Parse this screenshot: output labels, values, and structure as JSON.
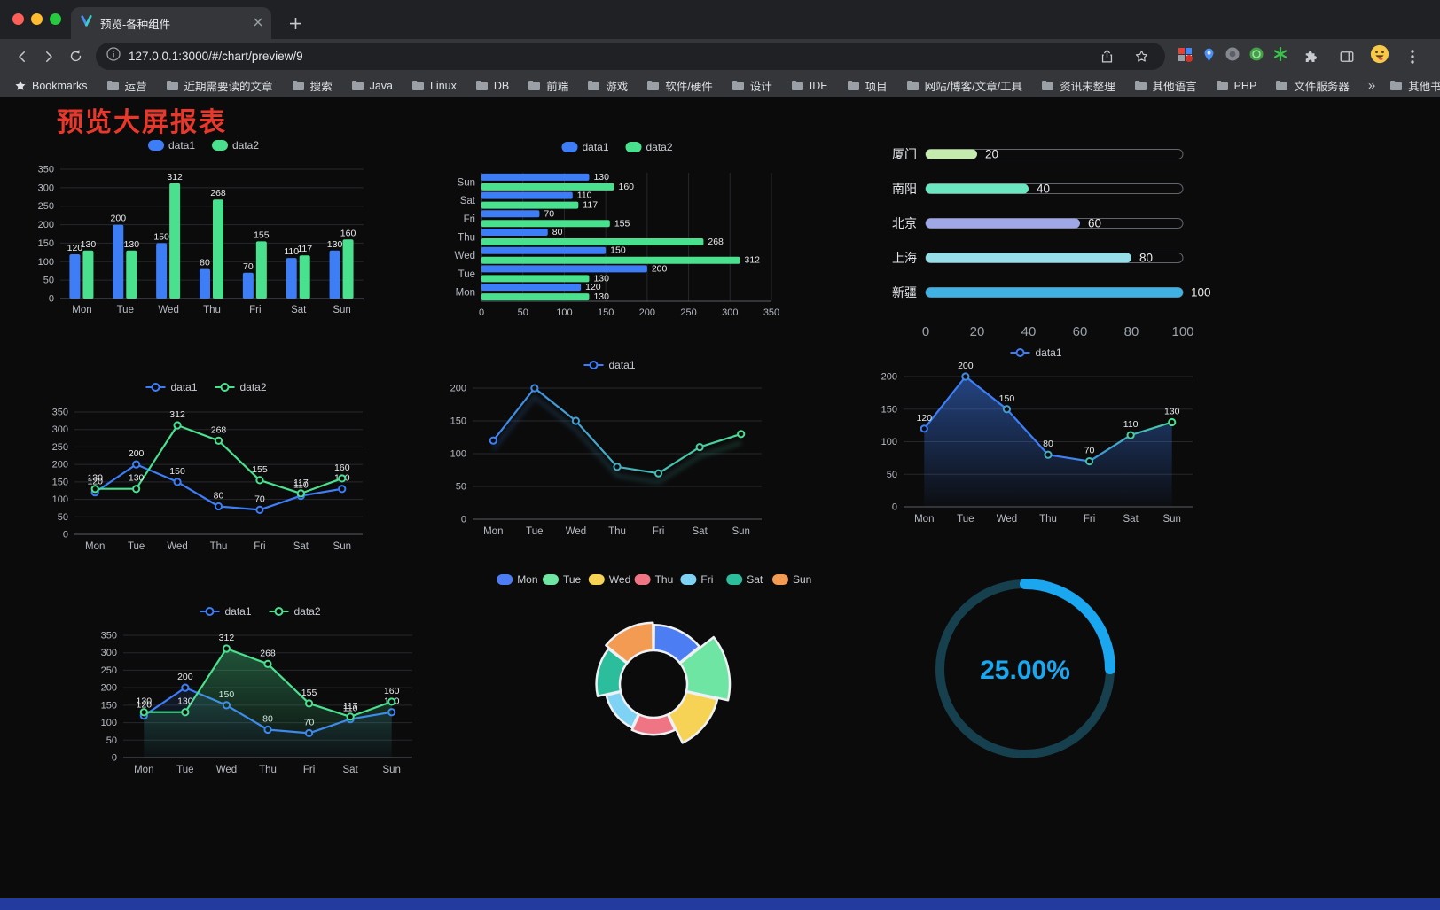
{
  "browser": {
    "tab": {
      "title": "预览-各种组件"
    },
    "url": "127.0.0.1:3000/#/chart/preview/9",
    "bookmarks_label": "Bookmarks",
    "bookmarks": [
      "运营",
      "近期需要读的文章",
      "搜索",
      "Java",
      "Linux",
      "DB",
      "前端",
      "游戏",
      "软件/硬件",
      "设计",
      "IDE",
      "项目",
      "网站/博客/文章/工具",
      "资讯未整理",
      "其他语言",
      "PHP",
      "文件服务器"
    ],
    "overflow_chevron": "»",
    "other_bookmarks": "其他书签"
  },
  "page": {
    "heading": "预览大屏报表",
    "heading_color": "#e8382b",
    "footer_color": "#233b9e",
    "background": "#0b0b0c"
  },
  "chart_data": [
    {
      "id": "bar-vertical",
      "type": "bar",
      "categories": [
        "Mon",
        "Tue",
        "Wed",
        "Thu",
        "Fri",
        "Sat",
        "Sun"
      ],
      "series": [
        {
          "name": "data1",
          "color": "#3D7EF7",
          "values": [
            120,
            200,
            150,
            80,
            70,
            110,
            130
          ]
        },
        {
          "name": "data2",
          "color": "#49E08E",
          "values": [
            130,
            130,
            312,
            268,
            155,
            117,
            160
          ]
        }
      ],
      "ylim": [
        0,
        350
      ],
      "ytick": 50,
      "legend_position": "top",
      "grid": true
    },
    {
      "id": "bar-horizontal",
      "type": "hbar",
      "categories": [
        "Mon",
        "Tue",
        "Wed",
        "Thu",
        "Fri",
        "Sat",
        "Sun"
      ],
      "series": [
        {
          "name": "data1",
          "color": "#3D7EF7",
          "values": [
            120,
            200,
            150,
            80,
            70,
            110,
            130
          ]
        },
        {
          "name": "data2",
          "color": "#49E08E",
          "values": [
            130,
            130,
            312,
            268,
            155,
            117,
            160
          ]
        }
      ],
      "xlim": [
        0,
        350
      ],
      "xtick": 50,
      "legend_position": "top",
      "grid": true
    },
    {
      "id": "capsule",
      "type": "capsule",
      "rows": [
        {
          "label": "厦门",
          "value": 20,
          "color": "#c4ebad"
        },
        {
          "label": "南阳",
          "value": 40,
          "color": "#6be6c1"
        },
        {
          "label": "北京",
          "value": 60,
          "color": "#a0a7e6"
        },
        {
          "label": "上海",
          "value": 80,
          "color": "#96dee8"
        },
        {
          "label": "新疆",
          "value": 100,
          "color": "#3fb1e3"
        }
      ],
      "xlim": [
        0,
        100
      ],
      "xticks": [
        0,
        20,
        40,
        60,
        80,
        100
      ]
    },
    {
      "id": "line-dual",
      "type": "line",
      "categories": [
        "Mon",
        "Tue",
        "Wed",
        "Thu",
        "Fri",
        "Sat",
        "Sun"
      ],
      "series": [
        {
          "name": "data1",
          "color": "#3D7EF7",
          "values": [
            120,
            200,
            150,
            80,
            70,
            110,
            130
          ],
          "labels": true
        },
        {
          "name": "data2",
          "color": "#49E08E",
          "values": [
            130,
            130,
            312,
            268,
            155,
            117,
            160
          ],
          "labels": true
        }
      ],
      "ylim": [
        0,
        350
      ],
      "ytick": 50,
      "legend_position": "top",
      "grid": true
    },
    {
      "id": "line-gradient",
      "type": "line",
      "categories": [
        "Mon",
        "Tue",
        "Wed",
        "Thu",
        "Fri",
        "Sat",
        "Sun"
      ],
      "series": [
        {
          "name": "data1",
          "gradient": [
            "#3D7EF7",
            "#49E08E"
          ],
          "values": [
            120,
            200,
            150,
            80,
            70,
            110,
            130
          ],
          "labels": false,
          "shadow": true
        }
      ],
      "ylim": [
        0,
        200
      ],
      "ytick": 50,
      "legend_position": "top",
      "grid": true
    },
    {
      "id": "line-area-grad",
      "type": "line",
      "categories": [
        "Mon",
        "Tue",
        "Wed",
        "Thu",
        "Fri",
        "Sat",
        "Sun"
      ],
      "series": [
        {
          "name": "data1",
          "gradient": [
            "#3D7EF7",
            "#3D7EF7",
            "#49E08E"
          ],
          "values": [
            120,
            200,
            150,
            80,
            70,
            110,
            130
          ],
          "labels": true,
          "area": true,
          "area_color": "#3D7EF7",
          "area_opacity": 0.5
        }
      ],
      "ylim": [
        0,
        200
      ],
      "ytick": 50,
      "legend_position": "top",
      "grid": true
    },
    {
      "id": "line-dual-area",
      "type": "line",
      "categories": [
        "Mon",
        "Tue",
        "Wed",
        "Thu",
        "Fri",
        "Sat",
        "Sun"
      ],
      "series": [
        {
          "name": "data1",
          "color": "#3D7EF7",
          "values": [
            120,
            200,
            150,
            80,
            70,
            110,
            130
          ],
          "labels": true,
          "area": true,
          "area_color": "#3D7EF7",
          "area_opacity": 0.22
        },
        {
          "name": "data2",
          "color": "#49E08E",
          "values": [
            130,
            130,
            312,
            268,
            155,
            117,
            160
          ],
          "labels": true,
          "area": true,
          "area_color": "#49E08E",
          "area_opacity": 0.38
        }
      ],
      "ylim": [
        0,
        350
      ],
      "ytick": 50,
      "legend_position": "top",
      "grid": true
    },
    {
      "id": "rose",
      "type": "rose",
      "categories": [
        "Mon",
        "Tue",
        "Wed",
        "Thu",
        "Fri",
        "Sat",
        "Sun"
      ],
      "values": [
        120,
        200,
        150,
        80,
        70,
        110,
        130
      ],
      "colors": [
        "#4C7DF3",
        "#6FE5A3",
        "#F6D355",
        "#EF7585",
        "#7ED3F4",
        "#2BBD9C",
        "#F39B53"
      ],
      "inner_radius": 38,
      "legend_position": "top"
    },
    {
      "id": "gauge",
      "type": "gauge",
      "value": 25,
      "display": "25.00%",
      "color": "#1AA7F0",
      "track_color": "#16404E"
    }
  ]
}
